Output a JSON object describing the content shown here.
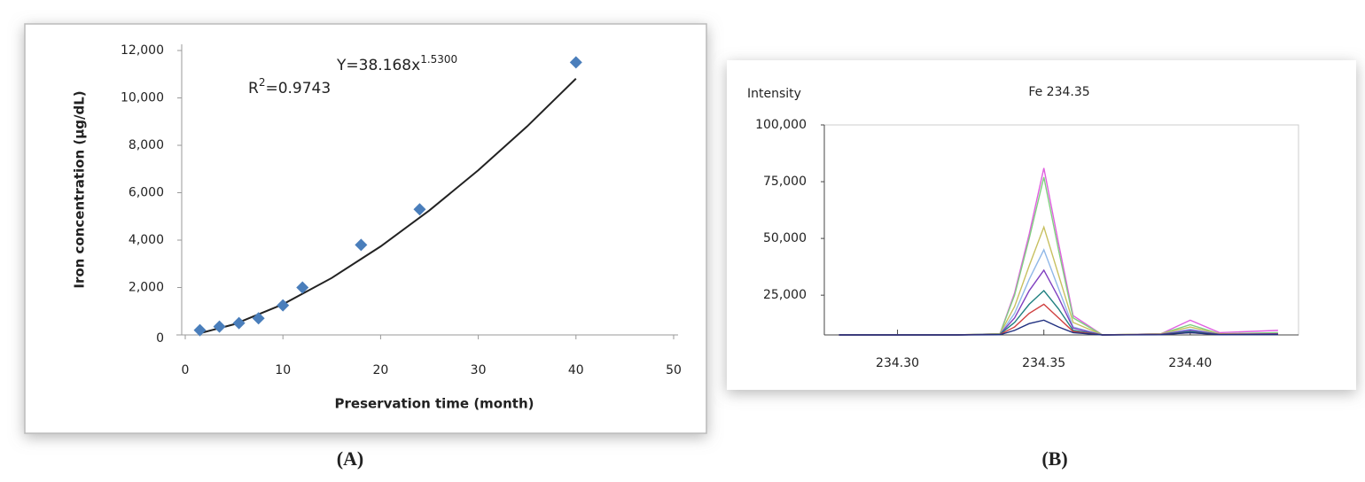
{
  "chart_data": [
    {
      "type": "scatter",
      "panel_label": "(A)",
      "xlabel": "Preservation time (month)",
      "ylabel": "Iron concentration (µg/dL)",
      "equation": {
        "text": "Y=38.168x",
        "exponent": "1.5300"
      },
      "r_squared": {
        "text": "R",
        "sup": "2",
        "rest": "=0.9743"
      },
      "series": [
        {
          "color": "#4a7ebb",
          "x": [
            1.5,
            3.5,
            5.5,
            7.5,
            10,
            12,
            18,
            24,
            40
          ],
          "values": [
            200,
            350,
            500,
            700,
            1250,
            2000,
            3800,
            5300,
            11500
          ]
        }
      ],
      "trendline": {
        "color": "#222222",
        "x": [
          1.5,
          5,
          10,
          15,
          20,
          25,
          30,
          35,
          40
        ],
        "values": [
          71,
          448,
          1293,
          2404,
          3733,
          5256,
          6947,
          8798,
          10813
        ]
      },
      "xlim": [
        0,
        50
      ],
      "xticks": [
        0,
        10,
        20,
        30,
        40,
        50
      ],
      "ylim": [
        0,
        12000
      ],
      "yticks": [
        0,
        {
          "value": 2000,
          "label": "2,000"
        },
        {
          "value": 4000,
          "label": "4,000"
        },
        {
          "value": 6000,
          "label": "6,000"
        },
        {
          "value": 8000,
          "label": "8,000"
        },
        {
          "value": 10000,
          "label": "10,000"
        },
        {
          "value": 12000,
          "label": "12,000"
        }
      ]
    },
    {
      "type": "line",
      "panel_label": "(B)",
      "title": "Fe 234.35",
      "ylabel": "Intensity",
      "x": [
        234.28,
        234.3,
        234.32,
        234.335,
        234.34,
        234.345,
        234.35,
        234.355,
        234.36,
        234.37,
        234.39,
        234.4,
        234.41,
        234.43
      ],
      "series": [
        {
          "color": "#e060e0",
          "values": [
            7500,
            7500,
            7500,
            8000,
            26000,
            52000,
            81000,
            48000,
            16000,
            7500,
            8000,
            14000,
            8500,
            9500
          ]
        },
        {
          "color": "#80d080",
          "values": [
            7500,
            7500,
            7500,
            8000,
            25000,
            50000,
            77000,
            45000,
            15000,
            7500,
            8000,
            12000,
            8000,
            8500
          ]
        },
        {
          "color": "#c8c060",
          "values": [
            7500,
            7500,
            7500,
            8000,
            20000,
            38000,
            55000,
            34000,
            13000,
            7500,
            8000,
            11000,
            8000,
            8000
          ]
        },
        {
          "color": "#90b8e8",
          "values": [
            7500,
            7500,
            7500,
            7800,
            17000,
            32000,
            45000,
            28000,
            11000,
            7500,
            7800,
            10000,
            7800,
            8000
          ]
        },
        {
          "color": "#8040c0",
          "values": [
            7500,
            7500,
            7500,
            7800,
            15000,
            27000,
            36000,
            24000,
            10500,
            7500,
            7800,
            9500,
            7800,
            8000
          ]
        },
        {
          "color": "#208080",
          "values": [
            7500,
            7500,
            7500,
            7800,
            13000,
            21000,
            27000,
            19000,
            9500,
            7500,
            7700,
            9000,
            7700,
            7800
          ]
        },
        {
          "color": "#d04040",
          "values": [
            7500,
            7500,
            7500,
            7700,
            11000,
            17000,
            21000,
            15000,
            9000,
            7500,
            7700,
            8500,
            7700,
            7800
          ]
        },
        {
          "color": "#203080",
          "values": [
            7500,
            7500,
            7500,
            7600,
            9500,
            12500,
            14000,
            11000,
            8500,
            7500,
            7600,
            8500,
            7600,
            7700
          ]
        }
      ],
      "xlim": [
        234.275,
        234.437
      ],
      "xticks": [
        {
          "value": 234.3,
          "label": "234.30"
        },
        {
          "value": 234.35,
          "label": "234.35"
        },
        {
          "value": 234.4,
          "label": "234.40"
        }
      ],
      "ylim": [
        7500,
        100000
      ],
      "yticks": [
        {
          "value": 25000,
          "label": "25,000"
        },
        {
          "value": 50000,
          "label": "50,000"
        },
        {
          "value": 75000,
          "label": "75,000"
        },
        {
          "value": 100000,
          "label": "100,000"
        }
      ]
    }
  ]
}
